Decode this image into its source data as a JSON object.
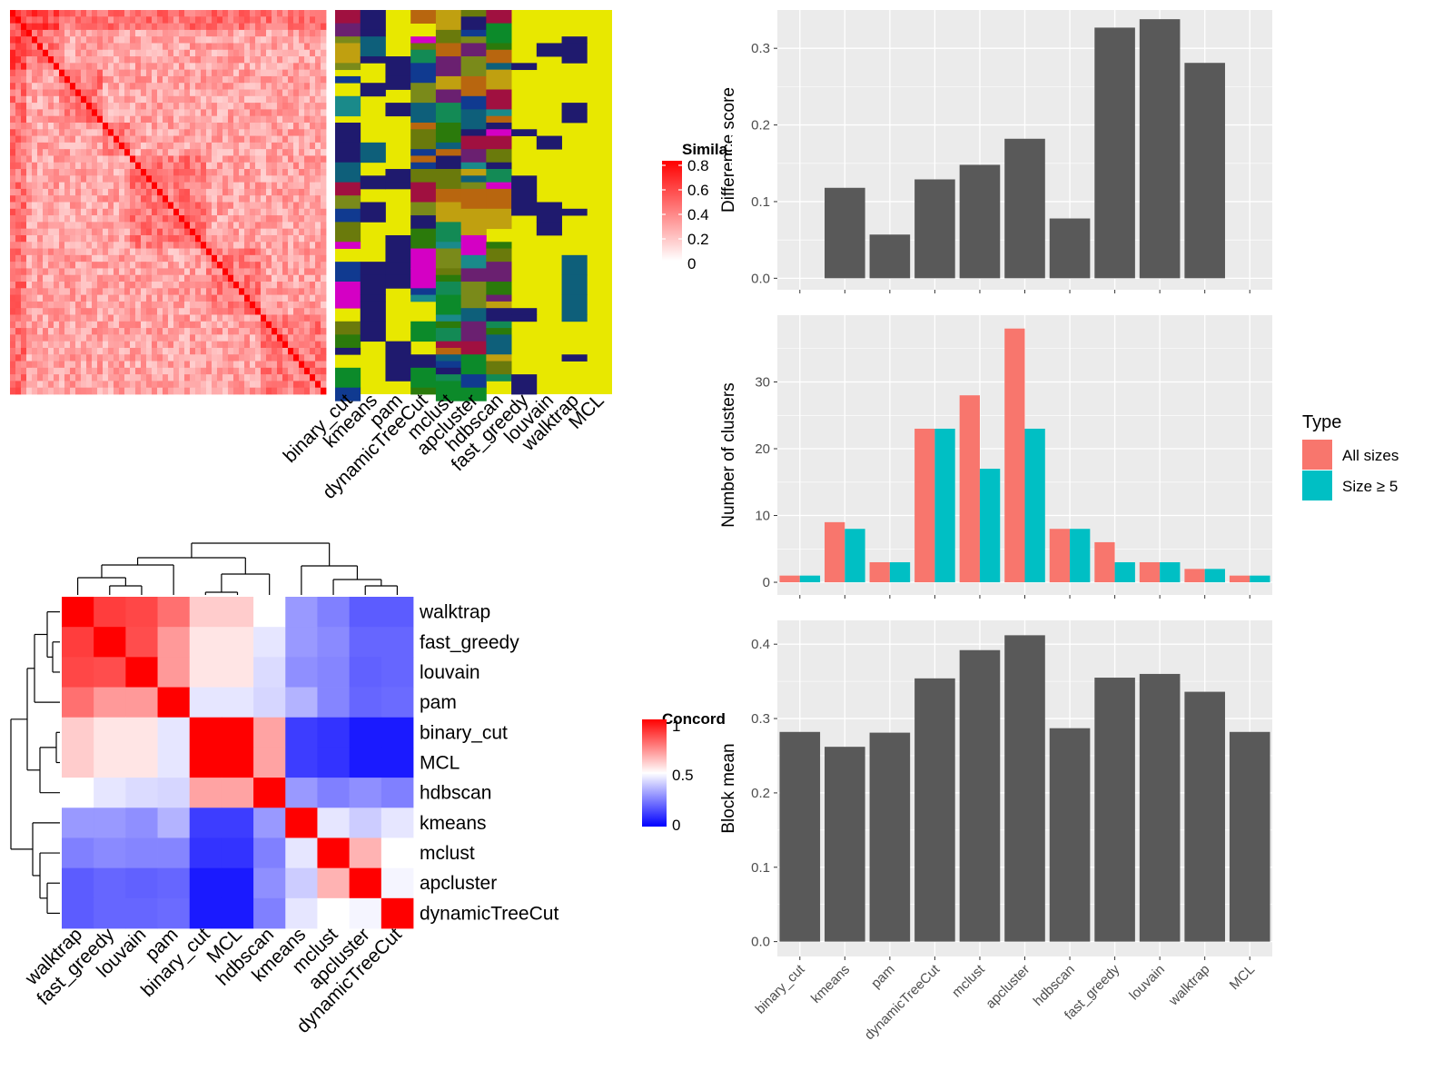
{
  "methods": [
    "binary_cut",
    "kmeans",
    "pam",
    "dynamicTreeCut",
    "mclust",
    "apcluster",
    "hdbscan",
    "fast_greedy",
    "louvain",
    "walktrap",
    "MCL"
  ],
  "colors": {
    "bar_dark": "#595959",
    "panel_bg": "#ebebeb",
    "grid": "#ffffff",
    "all_sizes": "#f8766d",
    "size_ge_5": "#00bfc4",
    "sim_high": "#ff0000",
    "sim_low": "#ffffff",
    "conc_high": "#ff0000",
    "conc_mid": "#ffffff",
    "conc_low": "#0000ff",
    "class_yellow": "#e8e800",
    "class_palette": [
      "#0e5f7a",
      "#d400c4",
      "#1f1a6e",
      "#2b7a0b",
      "#7a8a1a",
      "#b8660f",
      "#138a55",
      "#0c8a2a",
      "#6a2070",
      "#c0a010",
      "#a01040",
      "#103a90",
      "#6a7a0c",
      "#1a8a8a"
    ]
  },
  "similarity_heatmap": {
    "legend_title": "Simila",
    "legend_ticks": [
      "0.8",
      "0.6",
      "0.4",
      "0.2",
      "0"
    ]
  },
  "concordance_heatmap": {
    "legend_title": "Concord",
    "legend_ticks": [
      "1",
      "0.5",
      "0"
    ],
    "row_order": [
      "walktrap",
      "fast_greedy",
      "louvain",
      "pam",
      "binary_cut",
      "MCL",
      "hdbscan",
      "kmeans",
      "mclust",
      "apcluster",
      "dynamicTreeCut"
    ],
    "matrix": [
      [
        1.0,
        0.88,
        0.86,
        0.78,
        0.6,
        0.6,
        0.5,
        0.3,
        0.25,
        0.18,
        0.18
      ],
      [
        0.88,
        1.0,
        0.85,
        0.7,
        0.55,
        0.55,
        0.45,
        0.3,
        0.27,
        0.2,
        0.2
      ],
      [
        0.86,
        0.85,
        1.0,
        0.7,
        0.55,
        0.55,
        0.43,
        0.28,
        0.26,
        0.19,
        0.2
      ],
      [
        0.78,
        0.7,
        0.7,
        1.0,
        0.45,
        0.45,
        0.42,
        0.35,
        0.26,
        0.2,
        0.21
      ],
      [
        0.6,
        0.55,
        0.55,
        0.45,
        1.0,
        1.0,
        0.68,
        0.12,
        0.1,
        0.05,
        0.05
      ],
      [
        0.6,
        0.55,
        0.55,
        0.45,
        1.0,
        1.0,
        0.68,
        0.12,
        0.1,
        0.05,
        0.05
      ],
      [
        0.5,
        0.45,
        0.43,
        0.42,
        0.68,
        0.68,
        1.0,
        0.3,
        0.25,
        0.28,
        0.25
      ],
      [
        0.3,
        0.3,
        0.28,
        0.35,
        0.12,
        0.12,
        0.3,
        1.0,
        0.45,
        0.4,
        0.45
      ],
      [
        0.25,
        0.27,
        0.26,
        0.26,
        0.1,
        0.1,
        0.25,
        0.45,
        1.0,
        0.65,
        0.5
      ],
      [
        0.18,
        0.2,
        0.19,
        0.2,
        0.05,
        0.05,
        0.28,
        0.4,
        0.65,
        1.0,
        0.48
      ],
      [
        0.18,
        0.2,
        0.2,
        0.21,
        0.05,
        0.05,
        0.25,
        0.45,
        0.5,
        0.48,
        1.0
      ]
    ]
  },
  "chart_data": [
    {
      "type": "bar",
      "categories": [
        "binary_cut",
        "kmeans",
        "pam",
        "dynamicTreeCut",
        "mclust",
        "apcluster",
        "hdbscan",
        "fast_greedy",
        "louvain",
        "walktrap",
        "MCL"
      ],
      "values": [
        0,
        0.118,
        0.057,
        0.129,
        0.148,
        0.182,
        0.078,
        0.327,
        0.338,
        0.281,
        0
      ],
      "title": "",
      "xlabel": "",
      "ylabel": "Difference score",
      "ylim": [
        -0.015,
        0.35
      ],
      "yticks": [
        0.0,
        0.1,
        0.2,
        0.3
      ],
      "ytick_labels": [
        "0.0",
        "0.1",
        "0.2",
        "0.3"
      ],
      "grid": true
    },
    {
      "type": "bar",
      "categories": [
        "binary_cut",
        "kmeans",
        "pam",
        "dynamicTreeCut",
        "mclust",
        "apcluster",
        "hdbscan",
        "fast_greedy",
        "louvain",
        "walktrap",
        "MCL"
      ],
      "series": [
        {
          "name": "All sizes",
          "values": [
            1,
            9,
            3,
            23,
            28,
            38,
            8,
            6,
            3,
            2,
            1
          ]
        },
        {
          "name": "Size ≥ 5",
          "values": [
            1,
            8,
            3,
            23,
            17,
            23,
            8,
            3,
            3,
            2,
            1
          ]
        }
      ],
      "title": "",
      "xlabel": "",
      "ylabel": "Number of clusters",
      "ylim": [
        -1.9,
        40
      ],
      "yticks": [
        0,
        10,
        20,
        30
      ],
      "ytick_labels": [
        "0",
        "10",
        "20",
        "30"
      ],
      "grid": true,
      "legend_title": "Type",
      "legend_position": "right"
    },
    {
      "type": "bar",
      "categories": [
        "binary_cut",
        "kmeans",
        "pam",
        "dynamicTreeCut",
        "mclust",
        "apcluster",
        "hdbscan",
        "fast_greedy",
        "louvain",
        "walktrap",
        "MCL"
      ],
      "values": [
        0.282,
        0.262,
        0.281,
        0.354,
        0.392,
        0.412,
        0.287,
        0.355,
        0.36,
        0.336,
        0.282
      ],
      "title": "",
      "xlabel": "",
      "ylabel": "Block mean",
      "ylim": [
        -0.02,
        0.432
      ],
      "yticks": [
        0.0,
        0.1,
        0.2,
        0.3,
        0.4
      ],
      "ytick_labels": [
        "0.0",
        "0.1",
        "0.2",
        "0.3",
        "0.4"
      ],
      "grid": true
    }
  ]
}
